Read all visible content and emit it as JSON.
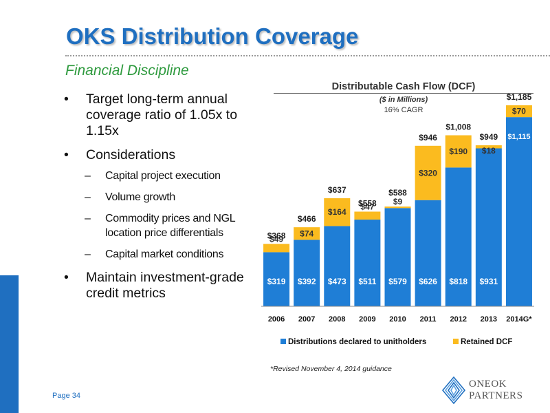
{
  "header": {
    "title": "OKS Distribution Coverage",
    "subtitle": "Financial Discipline"
  },
  "bullets": [
    {
      "level": 1,
      "text": "Target long-term annual coverage ratio of 1.05x to 1.15x"
    },
    {
      "level": 1,
      "text": "Considerations"
    },
    {
      "level": 2,
      "text": "Capital project execution"
    },
    {
      "level": 2,
      "text": "Volume growth"
    },
    {
      "level": 2,
      "text": "Commodity prices and NGL location price differentials"
    },
    {
      "level": 2,
      "text": "Capital market conditions"
    },
    {
      "level": 1,
      "text": "Maintain investment-grade credit metrics"
    }
  ],
  "footer": {
    "page": "Page 34",
    "footnote": "*Revised November 4, 2014 guidance",
    "logo_text_line1": "ONEOK",
    "logo_text_line2": "PARTNERS"
  },
  "colors": {
    "title": "#1f6fc0",
    "subtitle": "#2e9a3e",
    "distributions": "#1f7ed6",
    "retained": "#fbbb1f"
  },
  "chart_data": {
    "type": "bar",
    "stacked": true,
    "title": "Distributable Cash Flow (DCF)",
    "subtitle": "($ in Millions)",
    "annotation": "16% CAGR",
    "categories": [
      "2006",
      "2007",
      "2008",
      "2009",
      "2010",
      "2011",
      "2012",
      "2013",
      "2014G*"
    ],
    "series": [
      {
        "name": "Distributions declared to unitholders",
        "values": [
          319,
          392,
          473,
          511,
          579,
          626,
          818,
          931,
          1115
        ],
        "labels": [
          "$319",
          "$392",
          "$473",
          "$511",
          "$579",
          "$626",
          "$818",
          "$931",
          "$1,115"
        ]
      },
      {
        "name": "Retained DCF",
        "values": [
          49,
          74,
          164,
          47,
          9,
          320,
          190,
          18,
          70
        ],
        "labels": [
          "$49",
          "$74",
          "$164",
          "$47",
          "$9",
          "$320",
          "$190",
          "$18",
          "$70"
        ]
      }
    ],
    "totals": [
      "$368",
      "$466",
      "$637",
      "$558",
      "$588",
      "$946",
      "$1,008",
      "$949",
      "$1,185"
    ],
    "ylim": [
      0,
      1300
    ],
    "legend": "bottom"
  }
}
